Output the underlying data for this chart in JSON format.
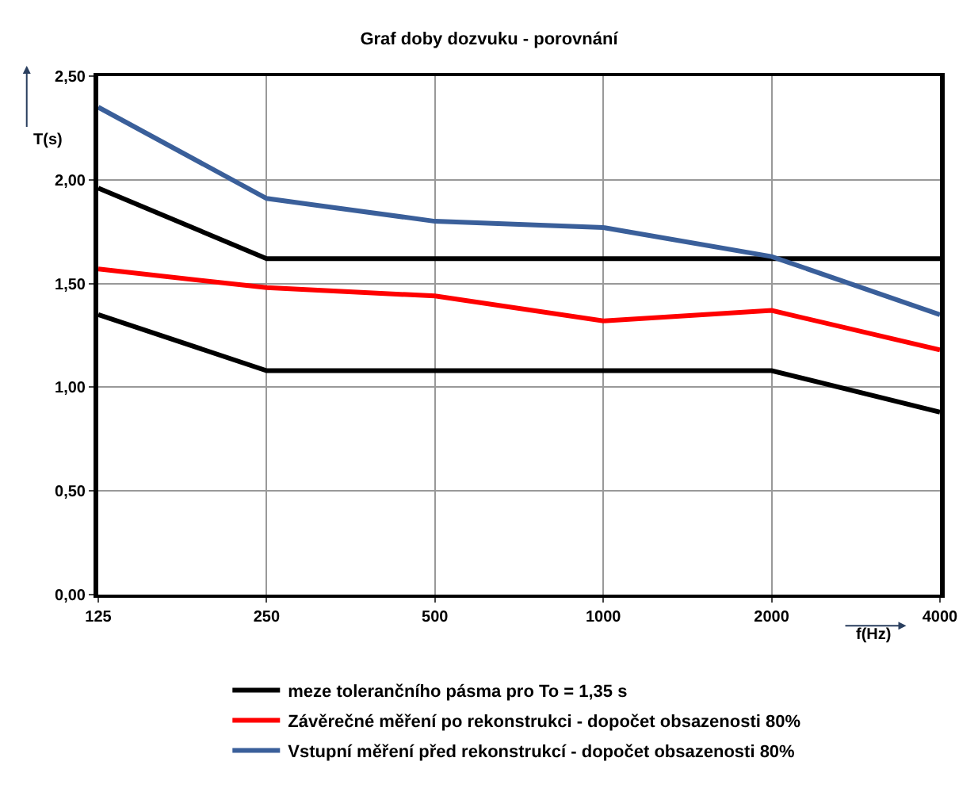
{
  "chart_data": {
    "type": "line",
    "title": "Graf doby dozvuku - porovnání",
    "xlabel": "f(Hz)",
    "ylabel": "T(s)",
    "categories": [
      "125",
      "250",
      "500",
      "1000",
      "2000",
      "4000"
    ],
    "series": [
      {
        "name": "meze tolerančního pásma pro To = 1,35 s",
        "color": "#000000",
        "values": [
          1.96,
          1.62,
          1.62,
          1.62,
          1.62,
          1.62
        ]
      },
      {
        "color": "#000000",
        "values": [
          1.35,
          1.08,
          1.08,
          1.08,
          1.08,
          0.88
        ]
      },
      {
        "name": "Závěrečné měření po rekonstrukci - dopočet obsazenosti 80%",
        "color": "#ff0000",
        "values": [
          1.57,
          1.48,
          1.44,
          1.32,
          1.37,
          1.18
        ]
      },
      {
        "name": "Vstupní měření před rekonstrukcí - dopočet obsazenosti 80%",
        "color": "#3a5f9a",
        "values": [
          2.35,
          1.91,
          1.8,
          1.77,
          1.63,
          1.35
        ]
      }
    ],
    "ylim": [
      0,
      2.5
    ],
    "yticks": [
      {
        "value": 0,
        "label": "0,00"
      },
      {
        "value": 0.5,
        "label": "0,50"
      },
      {
        "value": 1,
        "label": "1,00"
      },
      {
        "value": 1.5,
        "label": "1,50"
      },
      {
        "value": 2,
        "label": "2,00"
      },
      {
        "value": 2.5,
        "label": "2,50"
      }
    ],
    "grid": true,
    "legend": "bottom",
    "marker": "none",
    "line_style": "solid"
  }
}
